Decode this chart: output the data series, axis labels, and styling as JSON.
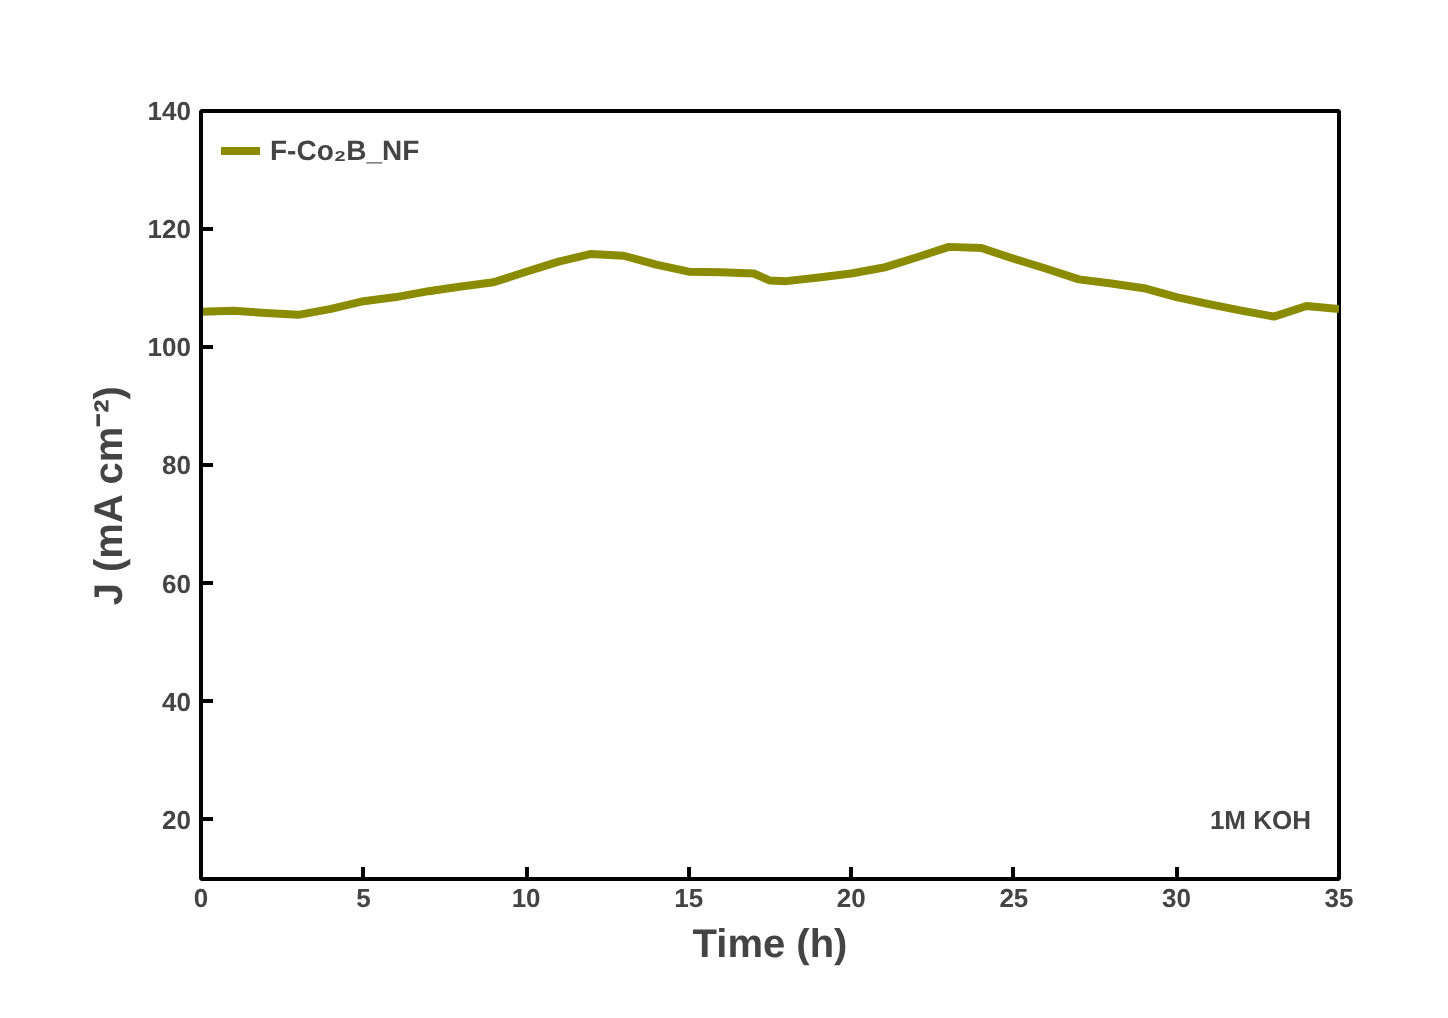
{
  "chart_data": {
    "type": "line",
    "xlabel": "Time (h)",
    "ylabel": "J (mA cm⁻²)",
    "x": [
      0,
      1,
      2,
      3,
      4,
      5,
      6,
      7,
      8,
      9,
      10,
      11,
      12,
      13,
      14,
      15,
      16,
      17,
      17.5,
      18,
      19,
      20,
      21,
      22,
      23,
      24,
      25,
      26,
      27,
      28,
      29,
      30,
      31,
      32,
      33,
      34,
      35
    ],
    "series": [
      {
        "name": "F-Co₂B_NF",
        "color": "#8b8b00",
        "values": [
          106,
          106.2,
          105.8,
          105.5,
          106.5,
          107.8,
          108.5,
          109.5,
          110.3,
          111,
          112.8,
          114.5,
          115.8,
          115.5,
          114,
          112.8,
          112.7,
          112.5,
          111.3,
          111.2,
          111.8,
          112.5,
          113.5,
          115.2,
          117,
          116.8,
          115,
          113.3,
          111.5,
          110.8,
          110,
          108.5,
          107.3,
          106.2,
          105.2,
          107,
          106.5
        ]
      }
    ],
    "xlim": [
      0,
      35
    ],
    "xticks": [
      0,
      5,
      10,
      15,
      20,
      25,
      30,
      35
    ],
    "ylim": [
      10,
      140
    ],
    "yticks": [
      20,
      40,
      60,
      80,
      100,
      120,
      140
    ],
    "grid": false,
    "legend": "top left",
    "line_style": "solid",
    "marker": "none",
    "annotations": [
      "1M KOH"
    ]
  }
}
